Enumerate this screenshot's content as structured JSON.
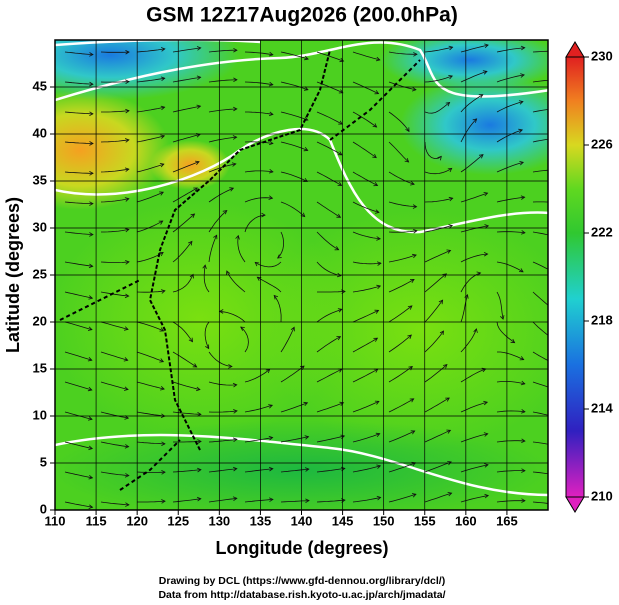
{
  "chart_data": {
    "type": "map",
    "title": "GSM 12Z17Aug2026 (200.0hPa)",
    "xlabel": "Longitude (degrees)",
    "ylabel": "Latitude  (degrees)",
    "xlim": [
      110,
      170
    ],
    "xticks": [
      110,
      115,
      120,
      125,
      130,
      135,
      140,
      145,
      150,
      155,
      160,
      165
    ],
    "ylim": [
      0,
      50
    ],
    "yticks": [
      0,
      5,
      10,
      15,
      20,
      25,
      30,
      35,
      40,
      45
    ],
    "grid": true,
    "colorbar": {
      "lim": [
        210,
        230
      ],
      "ticks": [
        210,
        214,
        218,
        222,
        226,
        230
      ]
    },
    "credits": [
      "Drawing by DCL (https://www.gfd-dennou.org/library/dcl/)",
      "Data from http://database.rish.kyoto-u.ac.jp/arch/jmadata/"
    ]
  }
}
